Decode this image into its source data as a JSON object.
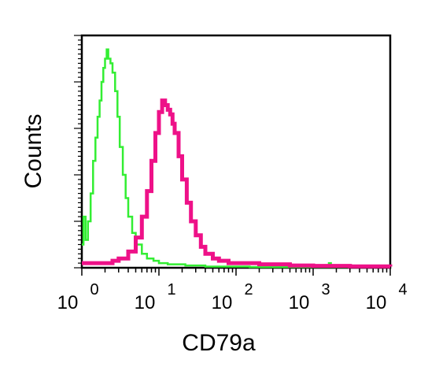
{
  "chart_data": {
    "type": "line",
    "title": "",
    "xlabel": "CD79a",
    "ylabel": "Counts",
    "x_scale": "log",
    "xlim": [
      1,
      10000
    ],
    "x_ticks": [
      {
        "base": "10",
        "exp": "0"
      },
      {
        "base": "10",
        "exp": "1"
      },
      {
        "base": "10",
        "exp": "2"
      },
      {
        "base": "10",
        "exp": "3"
      },
      {
        "base": "10",
        "exp": "4"
      }
    ],
    "ylim": [
      0,
      100
    ],
    "grid": false,
    "legend": "none",
    "series": [
      {
        "color": "#33ee33",
        "x": [
          1.0,
          1.05,
          1.12,
          1.2,
          1.3,
          1.4,
          1.5,
          1.6,
          1.7,
          1.8,
          1.9,
          2.0,
          2.1,
          2.2,
          2.35,
          2.5,
          2.7,
          2.9,
          3.1,
          3.4,
          3.7,
          4.0,
          4.5,
          5.0,
          6.0,
          7.0,
          8.5,
          10,
          13,
          17,
          22,
          30,
          40,
          60,
          100,
          150,
          200,
          300,
          500,
          1000,
          1500,
          1600,
          1700,
          3000,
          10000
        ],
        "y": [
          10,
          22,
          12,
          20,
          32,
          46,
          56,
          65,
          72,
          80,
          86,
          90,
          94,
          90,
          88,
          84,
          76,
          65,
          52,
          40,
          30,
          22,
          15,
          10,
          6,
          4,
          3,
          2,
          1.5,
          1.5,
          1,
          1,
          0.5,
          0.5,
          0.5,
          0.3,
          0.3,
          0.3,
          0.3,
          0.3,
          0.3,
          2,
          0.3,
          0.3,
          0.3
        ]
      },
      {
        "color": "#ee1188",
        "x": [
          1.0,
          1.5,
          2.0,
          2.5,
          3.0,
          4.0,
          5.0,
          6.0,
          7.0,
          8.0,
          9.0,
          10,
          11,
          12,
          13,
          14,
          15,
          16,
          18,
          20,
          23,
          26,
          30,
          35,
          40,
          50,
          60,
          80,
          100,
          150,
          200,
          300,
          500,
          1000,
          3000,
          10000
        ],
        "y": [
          2,
          2,
          2,
          3,
          4,
          7,
          13,
          22,
          33,
          46,
          58,
          67,
          72,
          70,
          68,
          66,
          62,
          58,
          48,
          38,
          28,
          20,
          14,
          9,
          6,
          4,
          3,
          2,
          2,
          2,
          1.5,
          1.5,
          1,
          0.8,
          0.6,
          0.5
        ]
      }
    ]
  }
}
